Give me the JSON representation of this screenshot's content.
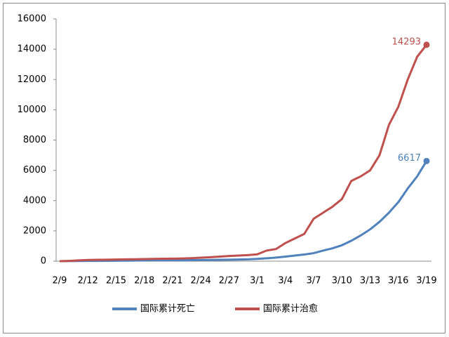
{
  "chart_data": {
    "type": "line",
    "categories": [
      "2/9",
      null,
      null,
      "2/12",
      null,
      null,
      "2/15",
      null,
      null,
      "2/18",
      null,
      null,
      "2/21",
      null,
      null,
      "2/24",
      null,
      null,
      "2/27",
      null,
      null,
      "3/1",
      null,
      null,
      "3/4",
      null,
      null,
      "3/7",
      null,
      null,
      "3/10",
      null,
      null,
      "3/13",
      null,
      null,
      "3/16",
      null,
      null,
      "3/19"
    ],
    "series": [
      {
        "name": "国际累计死亡",
        "color": "#4f81bd",
        "values": [
          0,
          5,
          10,
          15,
          20,
          25,
          30,
          35,
          40,
          45,
          50,
          55,
          60,
          65,
          70,
          75,
          80,
          90,
          100,
          110,
          120,
          150,
          190,
          240,
          300,
          370,
          440,
          530,
          700,
          850,
          1050,
          1350,
          1700,
          2100,
          2600,
          3200,
          3900,
          4800,
          5600,
          6617
        ]
      },
      {
        "name": "国际累计治愈",
        "color": "#c0504d",
        "values": [
          0,
          20,
          50,
          80,
          90,
          100,
          110,
          120,
          130,
          140,
          150,
          160,
          170,
          180,
          200,
          230,
          260,
          300,
          340,
          370,
          400,
          450,
          700,
          800,
          1200,
          1500,
          1800,
          2800,
          3200,
          3600,
          4100,
          5300,
          5600,
          6000,
          7000,
          9000,
          10200,
          12000,
          13500,
          14293
        ]
      }
    ],
    "ylim": [
      0,
      16000
    ],
    "yticks": [
      0,
      2000,
      4000,
      6000,
      8000,
      10000,
      12000,
      14000,
      16000
    ],
    "grid": false,
    "legend": "bottom"
  }
}
